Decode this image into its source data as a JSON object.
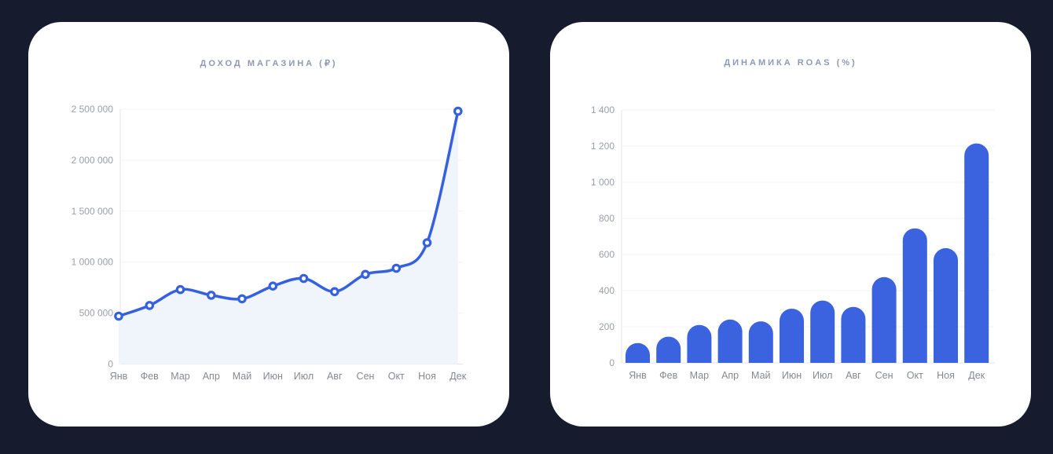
{
  "theme": {
    "page_background": "#161B2E",
    "card_background": "#FFFFFF",
    "accent_blue": "#3A63DE"
  },
  "chart_data": [
    {
      "type": "area",
      "title": "ДОХОД МАГАЗИНА (₽)",
      "xlabel": "",
      "ylabel": "",
      "legend_position": "none",
      "grid": true,
      "categories": [
        "Янв",
        "Фев",
        "Мар",
        "Апр",
        "Май",
        "Июн",
        "Июл",
        "Авг",
        "Сен",
        "Окт",
        "Ноя",
        "Дек"
      ],
      "values": [
        470000,
        575000,
        730000,
        675000,
        640000,
        765000,
        840000,
        710000,
        880000,
        940000,
        1190000,
        2480000
      ],
      "ylim": [
        0,
        2500000
      ],
      "yticks": [
        {
          "value": 0,
          "label": "0"
        },
        {
          "value": 500000,
          "label": "500 000"
        },
        {
          "value": 1000000,
          "label": "1 000 000"
        },
        {
          "value": 1500000,
          "label": "1 500 000"
        },
        {
          "value": 2000000,
          "label": "2 000 000"
        },
        {
          "value": 2500000,
          "label": "2 500 000"
        }
      ],
      "colors": {
        "line": "#3560E2",
        "point_fill": "#FFFFFF",
        "area": "#F0F4FB",
        "grid": "#F3F4F6",
        "axis": "#E4E6EA",
        "tick": "#9B9FA6",
        "label": "#85898F",
        "title": "#8F99B7"
      }
    },
    {
      "type": "bar",
      "title": "ДИНАМИКА ROAS (%)",
      "xlabel": "",
      "ylabel": "",
      "legend_position": "none",
      "grid": true,
      "categories": [
        "Янв",
        "Фев",
        "Мар",
        "Апр",
        "Май",
        "Июн",
        "Июл",
        "Авг",
        "Сен",
        "Окт",
        "Ноя",
        "Дек"
      ],
      "values": [
        110,
        145,
        210,
        240,
        230,
        300,
        345,
        310,
        475,
        745,
        635,
        1215
      ],
      "ylim": [
        0,
        1400
      ],
      "yticks": [
        {
          "value": 0,
          "label": "0"
        },
        {
          "value": 200,
          "label": "200"
        },
        {
          "value": 400,
          "label": "400"
        },
        {
          "value": 600,
          "label": "600"
        },
        {
          "value": 800,
          "label": "800"
        },
        {
          "value": 1000,
          "label": "1 000"
        },
        {
          "value": 1200,
          "label": "1 200"
        },
        {
          "value": 1400,
          "label": "1 400"
        }
      ],
      "colors": {
        "bar": "#3B63E0",
        "grid": "#F3F4F6",
        "axis": "#E4E6EA",
        "tick": "#9B9FA6",
        "label": "#85898F",
        "title": "#8F99B7"
      }
    }
  ]
}
